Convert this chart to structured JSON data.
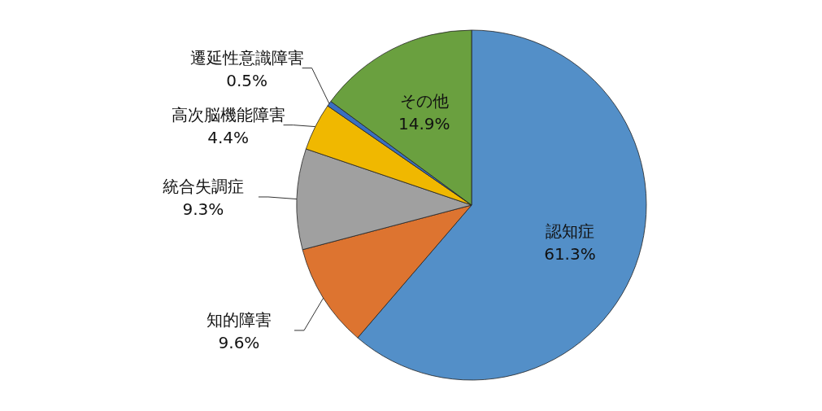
{
  "chart_data": {
    "type": "pie",
    "categories": [
      "認知症",
      "知的障害",
      "統合失調症",
      "高次脳機能障害",
      "遷延性意識障害",
      "その他"
    ],
    "values": [
      61.3,
      9.6,
      9.3,
      4.4,
      0.5,
      14.9
    ],
    "value_labels": [
      "61.3%",
      "9.6%",
      "9.3%",
      "4.4%",
      "0.5%",
      "14.9%"
    ],
    "colors": [
      "#538fc8",
      "#dd7430",
      "#a0a0a0",
      "#f0b800",
      "#3a6fc0",
      "#6aa03f"
    ]
  }
}
